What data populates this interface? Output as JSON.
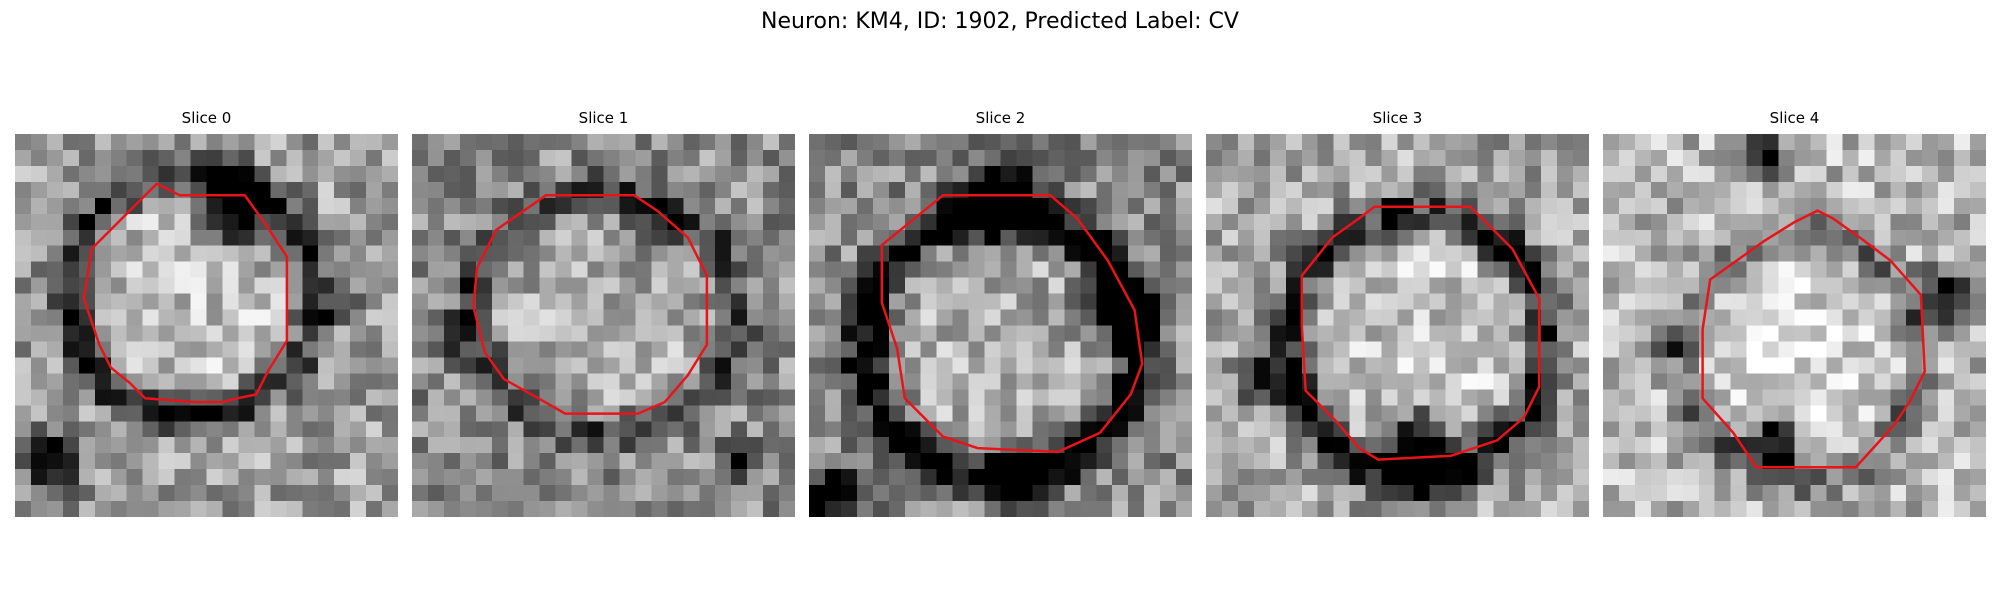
{
  "figure": {
    "title": "Neuron: KM4, ID: 1902, Predicted Label: CV"
  },
  "panels": [
    {
      "title": "Slice 0"
    },
    {
      "title": "Slice 1"
    },
    {
      "title": "Slice 2"
    },
    {
      "title": "Slice 3"
    },
    {
      "title": "Slice 4"
    }
  ],
  "colors": {
    "contour": "#e8141a",
    "background": "#ffffff"
  }
}
